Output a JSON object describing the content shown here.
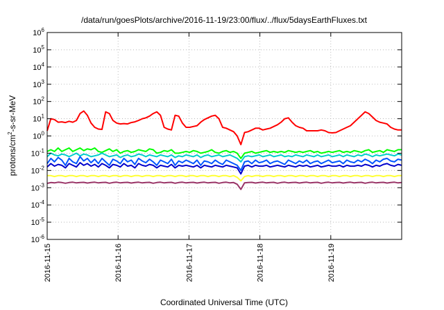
{
  "chart_data": {
    "type": "line",
    "title": "/data/run/goesPlots/archive/2016-11-19/23:00/flux/../flux/5daysEarthFluxes.txt",
    "xlabel": "Coordinated Universal Time (UTC)",
    "ylabel": {
      "pre": "protons/cm",
      "sup": "2",
      "post": "-s-sr-MeV"
    },
    "y_scale": "log",
    "ylim_exp": [
      -6,
      6
    ],
    "ytick_base": "10",
    "ytick_exponents": [
      "6",
      "5",
      "4",
      "3",
      "2",
      "1",
      "0",
      "-1",
      "-2",
      "-3",
      "-4",
      "-5",
      "-6"
    ],
    "xlim_days": [
      15,
      20
    ],
    "x_ticks": [
      {
        "day": 15,
        "label": "2016-11-15"
      },
      {
        "day": 16,
        "label": "2016-11-16"
      },
      {
        "day": 17,
        "label": "2016-11-17"
      },
      {
        "day": 18,
        "label": "2016-11-18"
      },
      {
        "day": 19,
        "label": "2016-11-19"
      }
    ],
    "grid": true,
    "series": [
      {
        "color": "#ff0000",
        "values_log10": [
          0.3,
          1.0,
          0.95,
          0.8,
          0.82,
          0.78,
          0.85,
          0.8,
          0.9,
          1.3,
          1.45,
          1.2,
          0.75,
          0.5,
          0.4,
          0.38,
          1.4,
          1.3,
          0.9,
          0.75,
          0.7,
          0.72,
          0.7,
          0.78,
          0.82,
          0.9,
          1.0,
          1.05,
          1.15,
          1.3,
          1.4,
          1.2,
          0.5,
          0.4,
          0.35,
          1.2,
          1.15,
          0.75,
          0.5,
          0.5,
          0.55,
          0.6,
          0.8,
          0.95,
          1.05,
          1.15,
          1.2,
          1.0,
          0.5,
          0.45,
          0.35,
          0.25,
          0.0,
          -0.5,
          0.2,
          0.25,
          0.35,
          0.45,
          0.45,
          0.35,
          0.4,
          0.45,
          0.55,
          0.65,
          0.8,
          1.0,
          1.05,
          0.8,
          0.6,
          0.5,
          0.45,
          0.3,
          0.3,
          0.3,
          0.3,
          0.35,
          0.3,
          0.2,
          0.18,
          0.2,
          0.3,
          0.4,
          0.5,
          0.6,
          0.8,
          1.0,
          1.2,
          1.4,
          1.3,
          1.1,
          0.9,
          0.8,
          0.75,
          0.7,
          0.5,
          0.4,
          0.35,
          0.35
        ]
      },
      {
        "color": "#00ff00",
        "values_log10": [
          -0.9,
          -0.8,
          -0.9,
          -0.7,
          -0.9,
          -0.8,
          -0.7,
          -0.9,
          -0.8,
          -0.7,
          -0.85,
          -0.75,
          -0.8,
          -0.7,
          -0.9,
          -0.95,
          -0.85,
          -0.75,
          -0.9,
          -0.8,
          -1.0,
          -0.9,
          -0.85,
          -0.95,
          -0.9,
          -0.8,
          -0.85,
          -0.9,
          -0.75,
          -0.8,
          -1.0,
          -0.95,
          -0.85,
          -0.9,
          -0.8,
          -1.0,
          -1.0,
          -0.95,
          -0.9,
          -0.95,
          -0.85,
          -0.9,
          -1.0,
          -0.95,
          -0.9,
          -0.8,
          -0.95,
          -1.0,
          -0.9,
          -0.85,
          -0.95,
          -0.9,
          -1.0,
          -1.3,
          -1.0,
          -0.95,
          -0.9,
          -1.0,
          -0.95,
          -0.9,
          -0.85,
          -0.95,
          -0.9,
          -0.95,
          -0.9,
          -0.95,
          -0.85,
          -0.9,
          -0.95,
          -0.9,
          -0.95,
          -0.9,
          -0.85,
          -0.95,
          -0.9,
          -1.0,
          -0.95,
          -0.9,
          -0.95,
          -0.9,
          -0.85,
          -0.95,
          -0.9,
          -0.95,
          -0.85,
          -0.9,
          -0.95,
          -0.85,
          -0.8,
          -0.95,
          -0.9,
          -0.85,
          -0.95,
          -0.8,
          -0.85,
          -0.9,
          -0.8,
          -0.8
        ]
      },
      {
        "color": "#00cccc",
        "values_log10": [
          -1.2,
          -1.0,
          -1.1,
          -1.15,
          -1.05,
          -1.1,
          -1.2,
          -1.1,
          -1.0,
          -1.15,
          -1.05,
          -1.1,
          -1.2,
          -1.15,
          -1.1,
          -1.0,
          -1.1,
          -1.2,
          -1.15,
          -1.1,
          -1.25,
          -1.15,
          -1.1,
          -1.2,
          -1.15,
          -1.05,
          -1.1,
          -1.2,
          -1.1,
          -1.15,
          -1.2,
          -1.1,
          -1.15,
          -1.2,
          -1.1,
          -1.25,
          -1.15,
          -1.2,
          -1.1,
          -1.15,
          -1.2,
          -1.1,
          -1.25,
          -1.15,
          -1.1,
          -1.2,
          -1.15,
          -1.1,
          -1.2,
          -1.15,
          -1.1,
          -1.2,
          -1.3,
          -1.5,
          -1.2,
          -1.15,
          -1.2,
          -1.15,
          -1.1,
          -1.2,
          -1.15,
          -1.1,
          -1.2,
          -1.15,
          -1.1,
          -1.2,
          -1.15,
          -1.2,
          -1.1,
          -1.15,
          -1.2,
          -1.1,
          -1.15,
          -1.2,
          -1.1,
          -1.2,
          -1.15,
          -1.1,
          -1.2,
          -1.15,
          -1.1,
          -1.2,
          -1.1,
          -1.15,
          -1.2,
          -1.1,
          -1.15,
          -1.05,
          -1.1,
          -1.2,
          -1.1,
          -1.15,
          -1.1,
          -1.05,
          -1.1,
          -1.15,
          -1.05,
          -1.1
        ]
      },
      {
        "color": "#0055ff",
        "values_log10": [
          -1.6,
          -1.3,
          -1.5,
          -1.25,
          -1.4,
          -1.7,
          -1.3,
          -1.5,
          -1.6,
          -1.2,
          -1.45,
          -1.3,
          -1.55,
          -1.35,
          -1.6,
          -1.3,
          -1.5,
          -1.7,
          -1.35,
          -1.45,
          -1.6,
          -1.3,
          -1.5,
          -1.4,
          -1.65,
          -1.3,
          -1.45,
          -1.55,
          -1.35,
          -1.5,
          -1.7,
          -1.4,
          -1.5,
          -1.6,
          -1.35,
          -1.7,
          -1.45,
          -1.55,
          -1.4,
          -1.5,
          -1.6,
          -1.4,
          -1.7,
          -1.45,
          -1.5,
          -1.6,
          -1.4,
          -1.55,
          -1.65,
          -1.4,
          -1.5,
          -1.6,
          -1.7,
          -2.0,
          -1.5,
          -1.45,
          -1.6,
          -1.4,
          -1.55,
          -1.5,
          -1.4,
          -1.6,
          -1.5,
          -1.45,
          -1.55,
          -1.65,
          -1.4,
          -1.5,
          -1.6,
          -1.45,
          -1.55,
          -1.4,
          -1.6,
          -1.5,
          -1.45,
          -1.6,
          -1.5,
          -1.4,
          -1.55,
          -1.5,
          -1.45,
          -1.6,
          -1.4,
          -1.5,
          -1.55,
          -1.4,
          -1.5,
          -1.35,
          -1.45,
          -1.6,
          -1.4,
          -1.5,
          -1.35,
          -1.3,
          -1.45,
          -1.5,
          -1.35,
          -1.4
        ]
      },
      {
        "color": "#0000cc",
        "values_log10": [
          -1.8,
          -1.6,
          -1.75,
          -1.65,
          -1.7,
          -1.85,
          -1.6,
          -1.7,
          -1.8,
          -1.55,
          -1.7,
          -1.6,
          -1.75,
          -1.65,
          -1.8,
          -1.6,
          -1.7,
          -1.85,
          -1.65,
          -1.7,
          -1.8,
          -1.6,
          -1.75,
          -1.7,
          -1.85,
          -1.6,
          -1.7,
          -1.75,
          -1.65,
          -1.7,
          -1.85,
          -1.7,
          -1.75,
          -1.8,
          -1.65,
          -1.85,
          -1.7,
          -1.75,
          -1.7,
          -1.75,
          -1.8,
          -1.7,
          -1.85,
          -1.7,
          -1.75,
          -1.8,
          -1.7,
          -1.75,
          -1.8,
          -1.7,
          -1.75,
          -1.8,
          -1.85,
          -2.2,
          -1.75,
          -1.7,
          -1.8,
          -1.7,
          -1.75,
          -1.75,
          -1.7,
          -1.8,
          -1.75,
          -1.7,
          -1.75,
          -1.8,
          -1.7,
          -1.75,
          -1.8,
          -1.7,
          -1.75,
          -1.7,
          -1.8,
          -1.75,
          -1.7,
          -1.8,
          -1.75,
          -1.7,
          -1.75,
          -1.75,
          -1.7,
          -1.8,
          -1.7,
          -1.75,
          -1.75,
          -1.7,
          -1.75,
          -1.65,
          -1.7,
          -1.8,
          -1.7,
          -1.75,
          -1.65,
          -1.6,
          -1.7,
          -1.75,
          -1.65,
          -1.7
        ]
      },
      {
        "color": "#ffff33",
        "values_log10": [
          -2.3,
          -2.3,
          -2.35,
          -2.3,
          -2.3,
          -2.35,
          -2.3,
          -2.3,
          -2.35,
          -2.3,
          -2.3,
          -2.35,
          -2.3,
          -2.3,
          -2.35,
          -2.3,
          -2.3,
          -2.35,
          -2.3,
          -2.3,
          -2.35,
          -2.3,
          -2.3,
          -2.35,
          -2.3,
          -2.3,
          -2.35,
          -2.3,
          -2.3,
          -2.35,
          -2.3,
          -2.3,
          -2.35,
          -2.3,
          -2.3,
          -2.35,
          -2.3,
          -2.3,
          -2.35,
          -2.3,
          -2.3,
          -2.35,
          -2.3,
          -2.3,
          -2.35,
          -2.3,
          -2.3,
          -2.35,
          -2.3,
          -2.3,
          -2.35,
          -2.3,
          -2.4,
          -2.6,
          -2.35,
          -2.3,
          -2.35,
          -2.3,
          -2.3,
          -2.35,
          -2.3,
          -2.3,
          -2.35,
          -2.3,
          -2.3,
          -2.35,
          -2.3,
          -2.3,
          -2.35,
          -2.3,
          -2.3,
          -2.35,
          -2.3,
          -2.3,
          -2.35,
          -2.3,
          -2.3,
          -2.35,
          -2.3,
          -2.3,
          -2.35,
          -2.3,
          -2.3,
          -2.35,
          -2.3,
          -2.3,
          -2.35,
          -2.3,
          -2.3,
          -2.35,
          -2.3,
          -2.3,
          -2.35,
          -2.3,
          -2.3,
          -2.35,
          -2.3,
          -2.3
        ]
      },
      {
        "color": "#993366",
        "values_log10": [
          -2.75,
          -2.7,
          -2.72,
          -2.68,
          -2.7,
          -2.74,
          -2.7,
          -2.68,
          -2.72,
          -2.7,
          -2.69,
          -2.73,
          -2.7,
          -2.68,
          -2.72,
          -2.7,
          -2.69,
          -2.74,
          -2.7,
          -2.68,
          -2.72,
          -2.7,
          -2.69,
          -2.73,
          -2.7,
          -2.68,
          -2.72,
          -2.7,
          -2.69,
          -2.74,
          -2.7,
          -2.68,
          -2.72,
          -2.7,
          -2.69,
          -2.74,
          -2.7,
          -2.68,
          -2.72,
          -2.7,
          -2.69,
          -2.73,
          -2.7,
          -2.68,
          -2.72,
          -2.7,
          -2.69,
          -2.74,
          -2.7,
          -2.68,
          -2.72,
          -2.7,
          -2.8,
          -3.1,
          -2.72,
          -2.7,
          -2.69,
          -2.73,
          -2.7,
          -2.68,
          -2.72,
          -2.7,
          -2.69,
          -2.74,
          -2.7,
          -2.68,
          -2.72,
          -2.7,
          -2.69,
          -2.73,
          -2.7,
          -2.68,
          -2.72,
          -2.7,
          -2.69,
          -2.74,
          -2.7,
          -2.68,
          -2.72,
          -2.7,
          -2.69,
          -2.73,
          -2.7,
          -2.68,
          -2.72,
          -2.7,
          -2.69,
          -2.74,
          -2.7,
          -2.68,
          -2.72,
          -2.7,
          -2.69,
          -2.73,
          -2.7,
          -2.68,
          -2.72,
          -2.7
        ]
      }
    ]
  }
}
